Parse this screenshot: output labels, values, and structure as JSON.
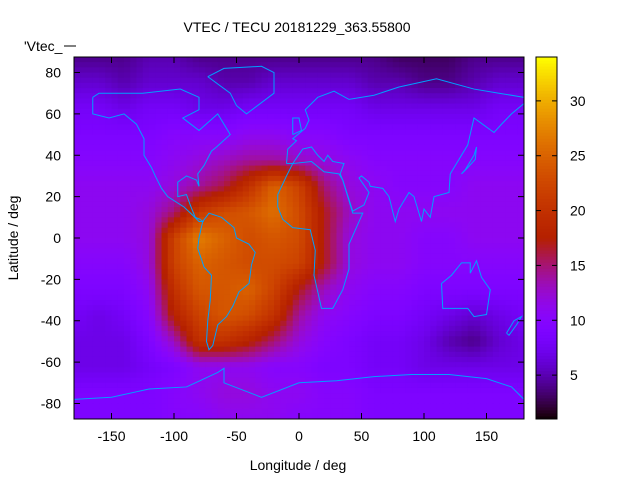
{
  "chart_data": {
    "type": "heatmap",
    "title": "VTEC / TECU 20181229_363.55800",
    "xlabel": "Longitude / deg",
    "ylabel": "Latitude / deg",
    "key_label": "'Vtec_",
    "xlim": [
      -180,
      180
    ],
    "ylim": [
      -87.5,
      87.5
    ],
    "xticks": [
      -150,
      -100,
      -50,
      0,
      50,
      100,
      150
    ],
    "yticks": [
      -80,
      -60,
      -40,
      -20,
      0,
      20,
      40,
      60,
      80
    ],
    "colorbar": {
      "range": [
        1,
        34
      ],
      "ticks": [
        5,
        10,
        15,
        20,
        25,
        30
      ]
    },
    "colormap": "black-blue-purple-red-orange-yellow",
    "coastline_color": "#00a0ff",
    "grid_lon": [
      -180,
      -160,
      -140,
      -120,
      -100,
      -80,
      -60,
      -40,
      -20,
      0,
      20,
      40,
      60,
      80,
      100,
      120,
      140,
      160,
      180
    ],
    "grid_lat": [
      87.5,
      75,
      62.5,
      50,
      37.5,
      25,
      12.5,
      0,
      -12.5,
      -25,
      -37.5,
      -50,
      -62.5,
      -75,
      -87.5
    ],
    "values": [
      [
        4,
        4,
        4,
        5,
        5,
        4,
        4,
        4,
        4,
        4,
        4,
        4,
        4,
        3,
        3,
        3,
        4,
        4,
        4
      ],
      [
        6,
        6,
        5,
        6,
        6,
        6,
        5,
        5,
        6,
        6,
        6,
        6,
        5,
        5,
        4,
        4,
        5,
        6,
        6
      ],
      [
        8,
        8,
        7,
        8,
        8,
        7,
        7,
        8,
        8,
        8,
        8,
        8,
        7,
        7,
        7,
        7,
        7,
        8,
        8
      ],
      [
        9,
        9,
        9,
        9,
        10,
        10,
        10,
        11,
        11,
        10,
        10,
        9,
        9,
        9,
        9,
        9,
        9,
        9,
        9
      ],
      [
        10,
        10,
        10,
        10,
        11,
        12,
        13,
        14,
        14,
        13,
        12,
        11,
        10,
        10,
        10,
        10,
        10,
        10,
        10
      ],
      [
        11,
        11,
        11,
        11,
        12,
        14,
        16,
        20,
        25,
        22,
        15,
        12,
        11,
        10,
        10,
        10,
        11,
        11,
        11
      ],
      [
        11,
        11,
        11,
        12,
        15,
        21,
        23,
        24,
        26,
        23,
        17,
        13,
        11,
        11,
        11,
        11,
        11,
        11,
        11
      ],
      [
        11,
        11,
        11,
        12,
        22,
        27,
        25,
        23,
        24,
        23,
        17,
        12,
        11,
        11,
        10,
        10,
        11,
        11,
        11
      ],
      [
        10,
        10,
        10,
        12,
        22,
        25,
        24,
        23,
        23,
        22,
        17,
        12,
        11,
        11,
        10,
        10,
        10,
        10,
        10
      ],
      [
        9,
        9,
        9,
        11,
        20,
        24,
        24,
        25,
        22,
        17,
        13,
        11,
        10,
        10,
        9,
        9,
        9,
        9,
        9
      ],
      [
        8,
        7,
        8,
        10,
        18,
        22,
        24,
        23,
        20,
        14,
        11,
        10,
        9,
        9,
        8,
        7,
        6,
        7,
        8
      ],
      [
        7,
        7,
        7,
        9,
        13,
        20,
        20,
        18,
        15,
        12,
        10,
        9,
        8,
        8,
        7,
        5,
        4,
        6,
        7
      ],
      [
        7,
        7,
        7,
        8,
        9,
        11,
        11,
        11,
        10,
        10,
        9,
        9,
        8,
        8,
        7,
        7,
        7,
        7,
        7
      ],
      [
        9,
        9,
        9,
        9,
        10,
        11,
        12,
        12,
        11,
        11,
        10,
        10,
        9,
        9,
        9,
        9,
        9,
        9,
        9
      ],
      [
        9,
        9,
        9,
        9,
        10,
        10,
        11,
        11,
        11,
        10,
        10,
        10,
        9,
        9,
        9,
        9,
        9,
        9,
        9
      ]
    ]
  }
}
